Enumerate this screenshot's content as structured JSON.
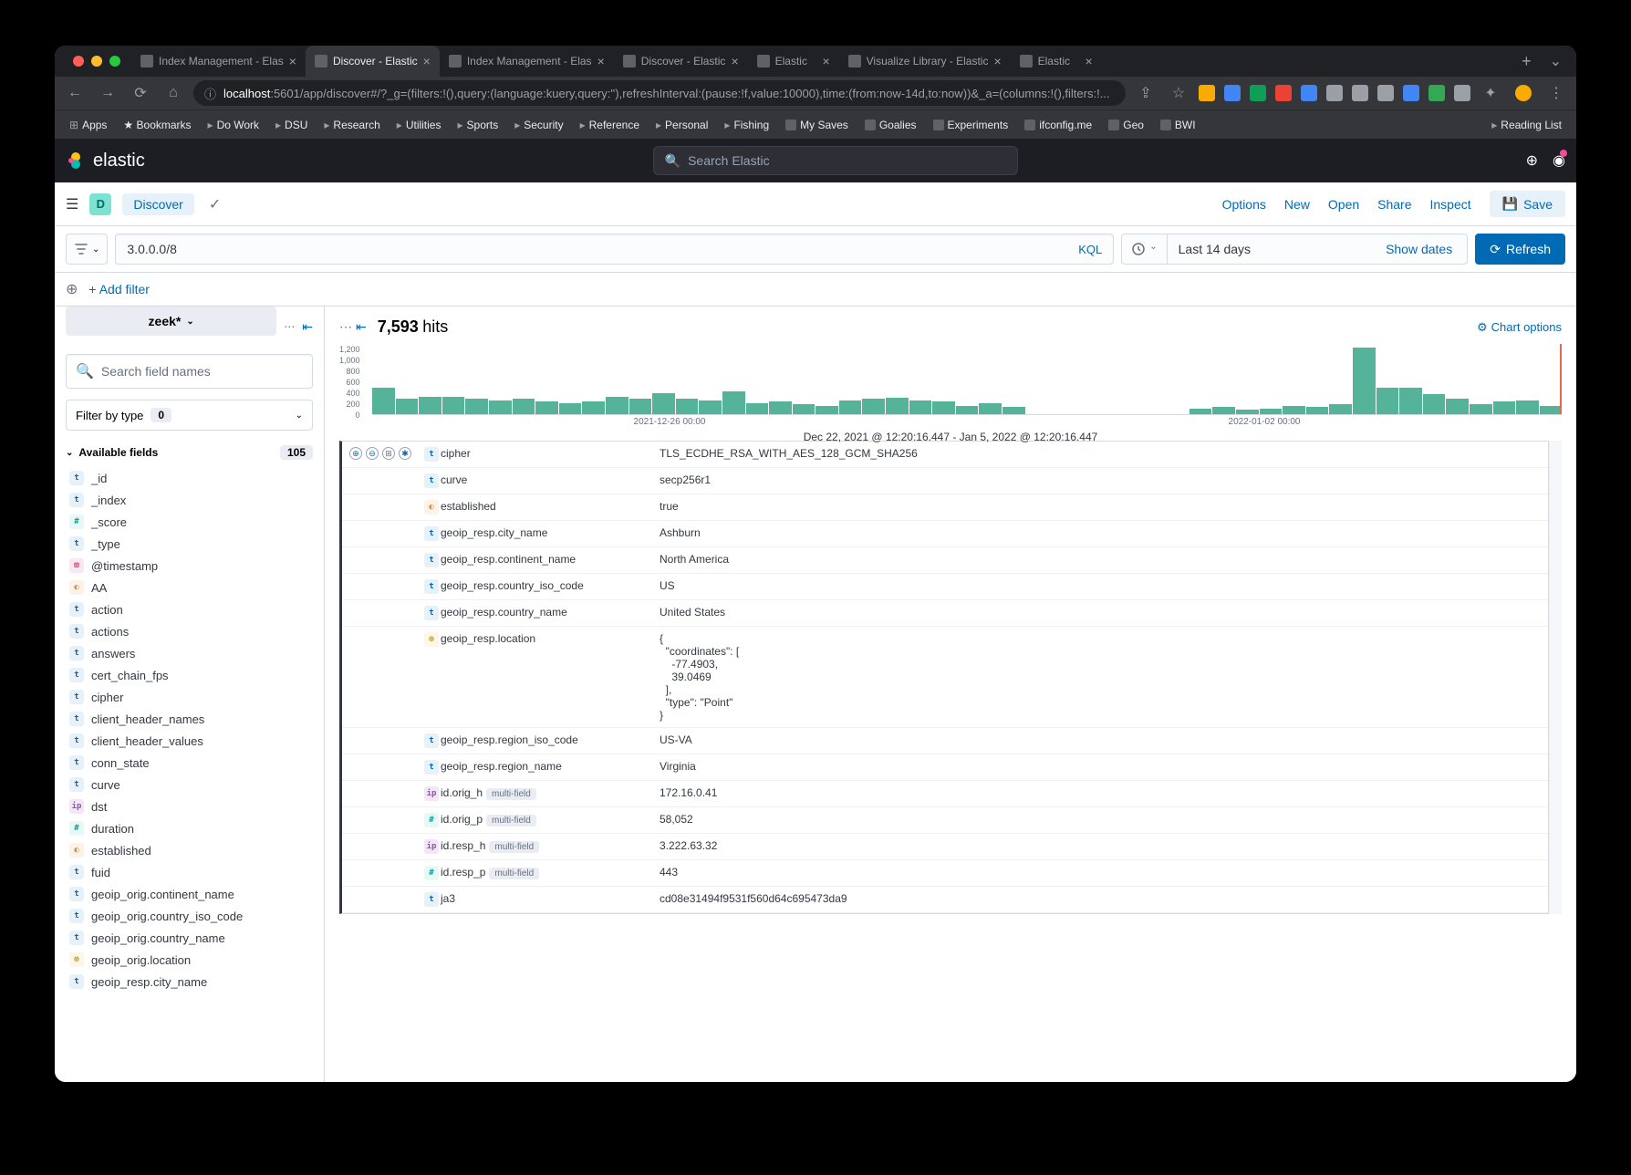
{
  "browser": {
    "tabs": [
      {
        "title": "Index Management - Elas",
        "active": false
      },
      {
        "title": "Discover - Elastic",
        "active": true
      },
      {
        "title": "Index Management - Elas",
        "active": false
      },
      {
        "title": "Discover - Elastic",
        "active": false
      },
      {
        "title": "Elastic",
        "active": false
      },
      {
        "title": "Visualize Library - Elastic",
        "active": false
      },
      {
        "title": "Elastic",
        "active": false
      }
    ],
    "url_prefix": "localhost",
    "url_rest": ":5601/app/discover#/?_g=(filters:!(),query:(language:kuery,query:''),refreshInterval:(pause:!f,value:10000),time:(from:now-14d,to:now))&_a=(columns:!(),filters:!...",
    "bookmarks": [
      "Apps",
      "Bookmarks",
      "Do Work",
      "DSU",
      "Research",
      "Utilities",
      "Sports",
      "Security",
      "Reference",
      "Personal",
      "Fishing",
      "My Saves",
      "Goalies",
      "Experiments",
      "ifconfig.me",
      "Geo",
      "BWI"
    ],
    "reading_list": "Reading List",
    "ext_colors": [
      "#f9ab00",
      "#4285f4",
      "#0f9d58",
      "#ea4335",
      "#4285f4",
      "#9aa0a6",
      "#9aa0a6",
      "#9aa0a6",
      "#4285f4",
      "#34a853",
      "#9aa0a6"
    ]
  },
  "elastic": {
    "brand": "elastic",
    "search_placeholder": "Search Elastic"
  },
  "appbar": {
    "space": "D",
    "title": "Discover",
    "links": [
      "Options",
      "New",
      "Open",
      "Share",
      "Inspect"
    ],
    "save": "Save"
  },
  "query": {
    "text": "3.0.0.0/8",
    "lang": "KQL",
    "time": "Last 14 days",
    "show_dates": "Show dates",
    "refresh": "Refresh",
    "add_filter": "+ Add filter"
  },
  "sidebar": {
    "index": "zeek*",
    "search_placeholder": "Search field names",
    "filter_type": "Filter by type",
    "filter_count": "0",
    "available_label": "Available fields",
    "available_count": "105",
    "fields": [
      {
        "t": "t",
        "n": "_id"
      },
      {
        "t": "t",
        "n": "_index"
      },
      {
        "t": "n",
        "n": "_score"
      },
      {
        "t": "t",
        "n": "_type"
      },
      {
        "t": "d",
        "n": "@timestamp"
      },
      {
        "t": "b",
        "n": "AA"
      },
      {
        "t": "t",
        "n": "action"
      },
      {
        "t": "t",
        "n": "actions"
      },
      {
        "t": "t",
        "n": "answers"
      },
      {
        "t": "t",
        "n": "cert_chain_fps"
      },
      {
        "t": "t",
        "n": "cipher"
      },
      {
        "t": "t",
        "n": "client_header_names"
      },
      {
        "t": "t",
        "n": "client_header_values"
      },
      {
        "t": "t",
        "n": "conn_state"
      },
      {
        "t": "t",
        "n": "curve"
      },
      {
        "t": "ip",
        "n": "dst"
      },
      {
        "t": "n",
        "n": "duration"
      },
      {
        "t": "b",
        "n": "established"
      },
      {
        "t": "t",
        "n": "fuid"
      },
      {
        "t": "t",
        "n": "geoip_orig.continent_name"
      },
      {
        "t": "t",
        "n": "geoip_orig.country_iso_code"
      },
      {
        "t": "t",
        "n": "geoip_orig.country_name"
      },
      {
        "t": "geo",
        "n": "geoip_orig.location"
      },
      {
        "t": "t",
        "n": "geoip_resp.city_name"
      }
    ]
  },
  "content": {
    "hits_number": "7,593",
    "hits_label": "hits",
    "chart_options": "Chart options",
    "chart": {
      "ylabels": [
        "1,200",
        "1,000",
        "800",
        "600",
        "400",
        "200",
        "0"
      ],
      "xlabels": [
        "2021-12-26 00:00",
        "2022-01-02 00:00"
      ],
      "bars": [
        38,
        22,
        25,
        25,
        22,
        20,
        22,
        18,
        16,
        18,
        25,
        22,
        30,
        22,
        20,
        32,
        15,
        18,
        14,
        12,
        20,
        22,
        24,
        20,
        18,
        12,
        15,
        10,
        0,
        0,
        0,
        0,
        0,
        0,
        0,
        8,
        10,
        6,
        8,
        12,
        10,
        14,
        95,
        38,
        38,
        28,
        22,
        14,
        18,
        20,
        12
      ]
    },
    "timerange": "Dec 22, 2021 @ 12:20:16.447 - Jan 5, 2022 @ 12:20:16.447",
    "rows": [
      {
        "t": "t",
        "name": "cipher",
        "value": "TLS_ECDHE_RSA_WITH_AES_128_GCM_SHA256",
        "actions": true
      },
      {
        "t": "t",
        "name": "curve",
        "value": "secp256r1"
      },
      {
        "t": "b",
        "name": "established",
        "value": "true"
      },
      {
        "t": "t",
        "name": "geoip_resp.city_name",
        "value": "Ashburn"
      },
      {
        "t": "t",
        "name": "geoip_resp.continent_name",
        "value": "North America"
      },
      {
        "t": "t",
        "name": "geoip_resp.country_iso_code",
        "value": "US"
      },
      {
        "t": "t",
        "name": "geoip_resp.country_name",
        "value": "United States"
      },
      {
        "t": "geo",
        "name": "geoip_resp.location",
        "value": "{\n  \"coordinates\": [\n    -77.4903,\n    39.0469\n  ],\n  \"type\": \"Point\"\n}"
      },
      {
        "t": "t",
        "name": "geoip_resp.region_iso_code",
        "value": "US-VA"
      },
      {
        "t": "t",
        "name": "geoip_resp.region_name",
        "value": "Virginia"
      },
      {
        "t": "ip",
        "name": "id.orig_h",
        "value": "172.16.0.41",
        "multi": true
      },
      {
        "t": "n",
        "name": "id.orig_p",
        "value": "58,052",
        "multi": true
      },
      {
        "t": "ip",
        "name": "id.resp_h",
        "value": "3.222.63.32",
        "multi": true
      },
      {
        "t": "n",
        "name": "id.resp_p",
        "value": "443",
        "multi": true
      },
      {
        "t": "t",
        "name": "ja3",
        "value": "cd08e31494f9531f560d64c695473da9"
      }
    ],
    "multi_label": "multi-field"
  },
  "colors": {
    "accent": "#006bb4",
    "bar": "#54b399"
  }
}
